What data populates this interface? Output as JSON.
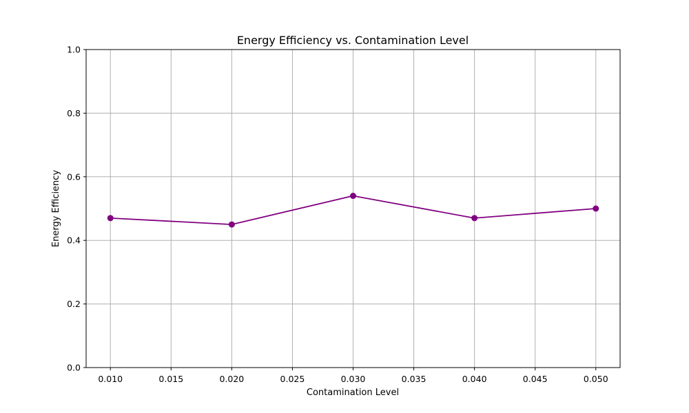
{
  "chart_data": {
    "type": "line",
    "title": "Energy Efficiency vs. Contamination Level",
    "xlabel": "Contamination Level",
    "ylabel": "Energy Efficiency",
    "xlim": [
      0.008,
      0.052
    ],
    "ylim": [
      0.0,
      1.0
    ],
    "x_ticks": [
      0.01,
      0.015,
      0.02,
      0.025,
      0.03,
      0.035,
      0.04,
      0.045,
      0.05
    ],
    "x_tick_labels": [
      "0.010",
      "0.015",
      "0.020",
      "0.025",
      "0.030",
      "0.035",
      "0.040",
      "0.045",
      "0.050"
    ],
    "y_ticks": [
      0.0,
      0.2,
      0.4,
      0.6,
      0.8,
      1.0
    ],
    "y_tick_labels": [
      "0.0",
      "0.2",
      "0.4",
      "0.6",
      "0.8",
      "1.0"
    ],
    "grid": true,
    "legend": "none",
    "series": [
      {
        "x": [
          0.01,
          0.02,
          0.03,
          0.04,
          0.05
        ],
        "values": [
          0.47,
          0.45,
          0.54,
          0.47,
          0.5
        ],
        "color": "#800080",
        "marker": "circle"
      }
    ],
    "colors": {
      "grid": "#b0b0b0",
      "axis": "#000000"
    }
  }
}
